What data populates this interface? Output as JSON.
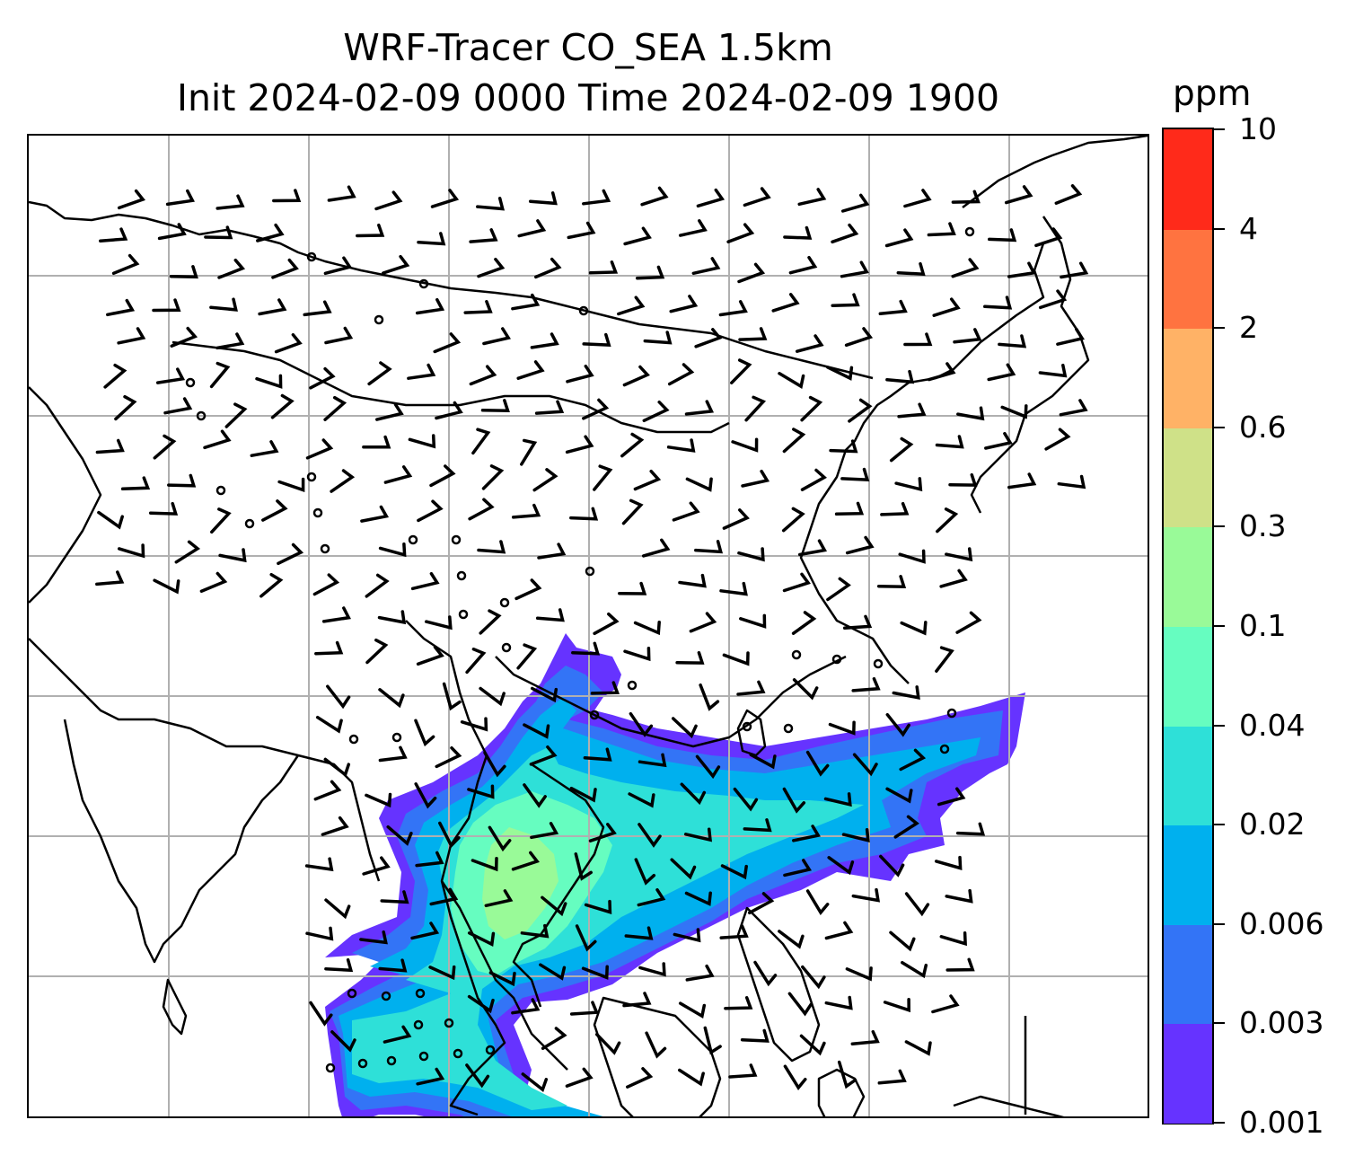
{
  "title": {
    "line1": "WRF-Tracer CO_SEA 1.5km",
    "line2": "Init 2024-02-09 0000 Time 2024-02-09 1900"
  },
  "colorbar": {
    "units": "ppm",
    "ticks": [
      "0.001",
      "0.003",
      "0.006",
      "0.02",
      "0.04",
      "0.1",
      "0.3",
      "0.6",
      "2",
      "4",
      "10"
    ],
    "colors": [
      "#6633ff",
      "#3374f6",
      "#00b0ee",
      "#2ee0d8",
      "#66fdc0",
      "#99fa98",
      "#cfe188",
      "#ffb266",
      "#ff7340",
      "#ff2a1a"
    ]
  },
  "map": {
    "gridlines": true,
    "gridline_color": "#b0b0b0",
    "coastline_color": "#000000",
    "plume_levels": [
      "0.001",
      "0.003",
      "0.006",
      "0.02",
      "0.04",
      "0.1"
    ],
    "wind_symbols": [
      "wind-barb",
      "calm-circle"
    ]
  }
}
